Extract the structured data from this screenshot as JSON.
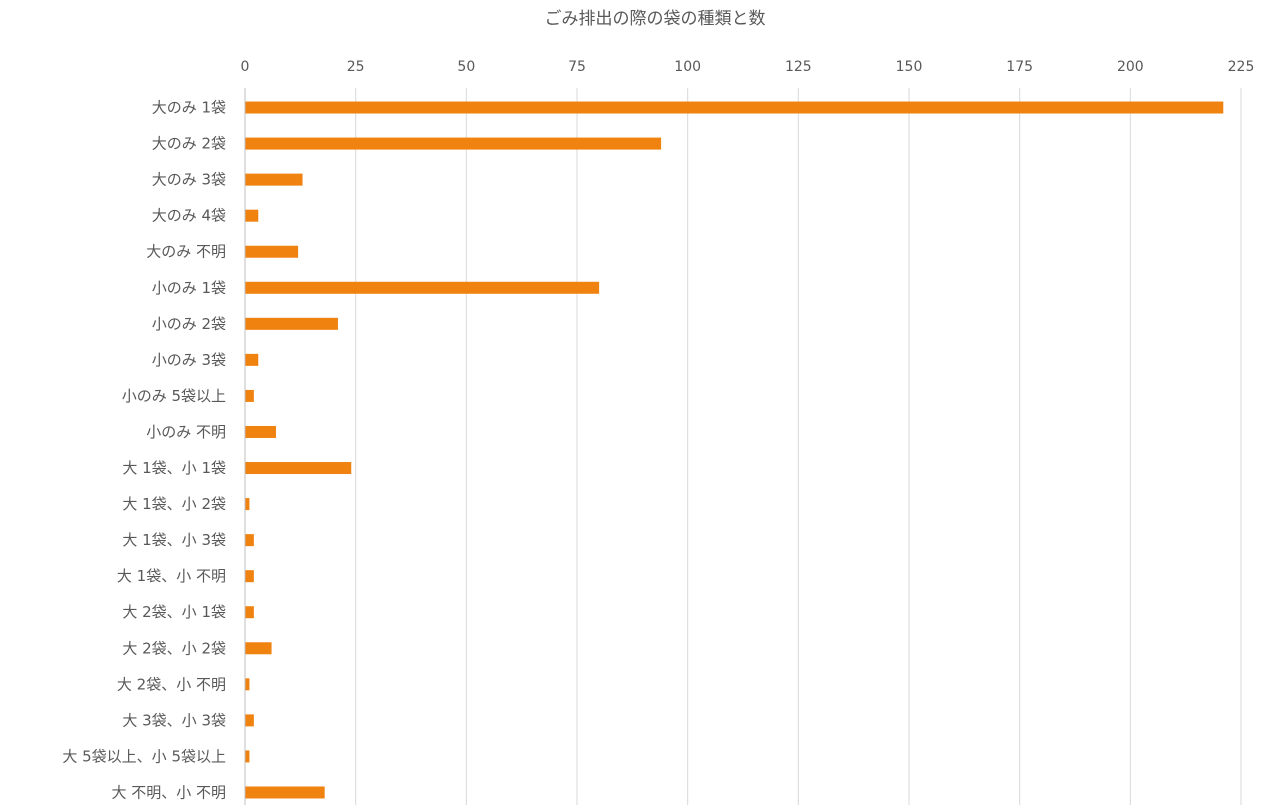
{
  "chart_data": {
    "type": "bar",
    "orientation": "horizontal",
    "title": "ごみ排出の際の袋の種類と数",
    "xlabel": "",
    "ylabel": "",
    "xlim": [
      0,
      225
    ],
    "xticks": [
      0,
      25,
      50,
      75,
      100,
      125,
      150,
      175,
      200,
      225
    ],
    "x_axis_position": "top",
    "grid": true,
    "legend": "none",
    "bar_color": "#F0820F",
    "categories": [
      "大のみ 1袋",
      "大のみ 2袋",
      "大のみ 3袋",
      "大のみ 4袋",
      "大のみ 不明",
      "小のみ 1袋",
      "小のみ 2袋",
      "小のみ 3袋",
      "小のみ 5袋以上",
      "小のみ 不明",
      "大 1袋、小 1袋",
      "大 1袋、小 2袋",
      "大 1袋、小 3袋",
      "大 1袋、小 不明",
      "大 2袋、小 1袋",
      "大 2袋、小 2袋",
      "大 2袋、小 不明",
      "大 3袋、小 3袋",
      "大 5袋以上、小 5袋以上",
      "大 不明、小 不明"
    ],
    "values": [
      221,
      94,
      13,
      3,
      12,
      80,
      21,
      3,
      2,
      7,
      24,
      1,
      2,
      2,
      2,
      6,
      1,
      2,
      1,
      18
    ]
  }
}
